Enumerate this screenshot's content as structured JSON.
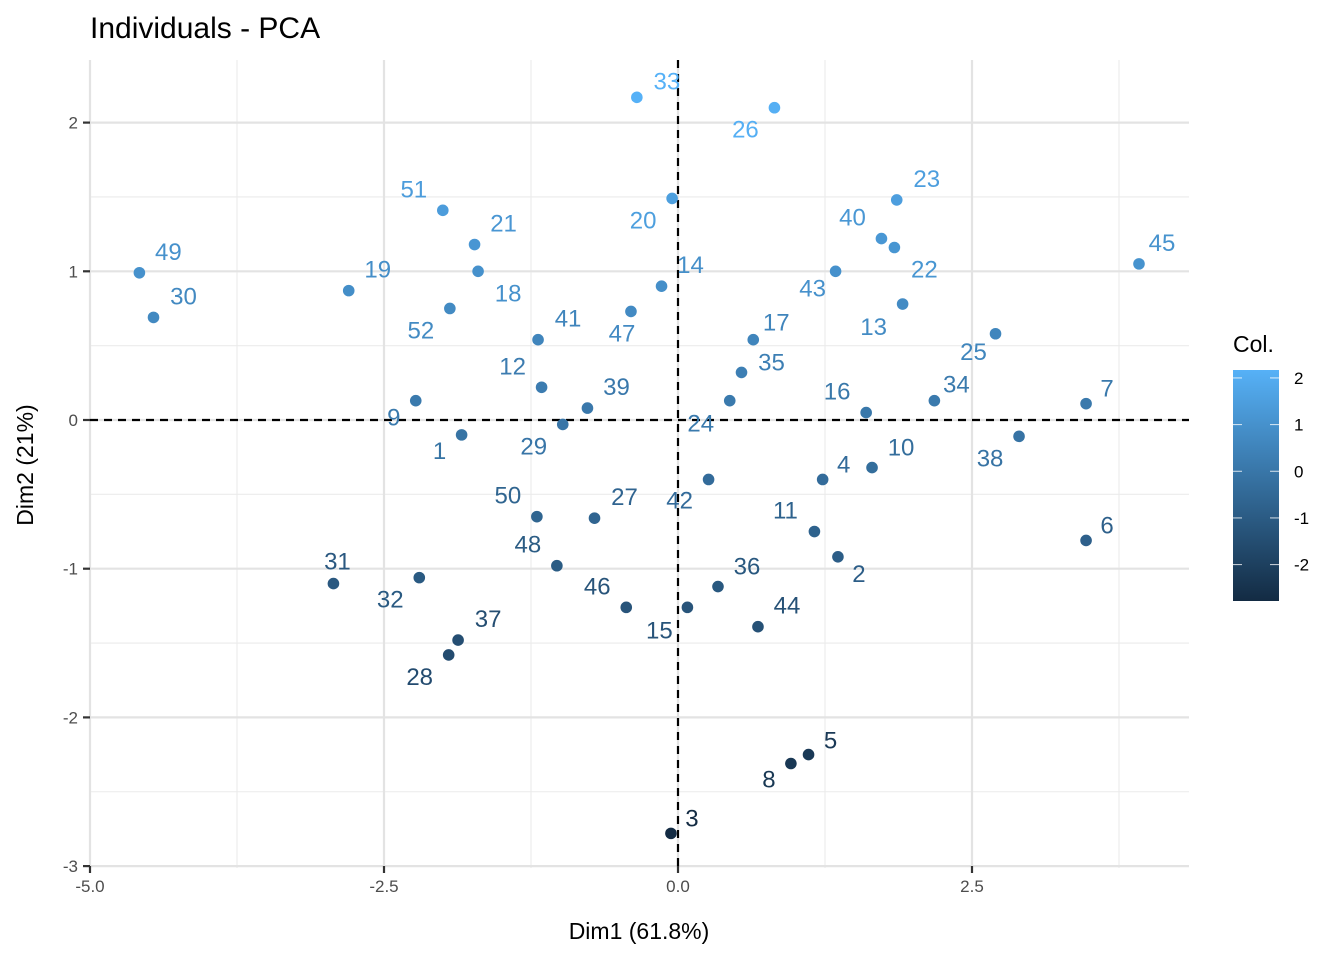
{
  "chart_data": {
    "type": "scatter",
    "title": "Individuals - PCA",
    "xlabel": "Dim1 (61.8%)",
    "ylabel": "Dim2 (21%)",
    "xlim": [
      -5.0,
      4.3
    ],
    "ylim": [
      -3.0,
      2.4
    ],
    "grid": true,
    "x_ticks": [
      -5.0,
      -2.5,
      0.0,
      2.5
    ],
    "x_tick_labels": [
      "-5.0",
      "-2.5",
      "0.0",
      "2.5"
    ],
    "y_ticks": [
      -3,
      -2,
      -1,
      0,
      1,
      2
    ],
    "y_tick_labels": [
      "-3",
      "-2",
      "-1",
      "0",
      "1",
      "2"
    ],
    "reference_lines": {
      "x": 0,
      "y": 0,
      "style": "dashed"
    },
    "color_variable": "Dim2",
    "legend": {
      "title": "Col.",
      "placement": "right",
      "type": "colorbar",
      "range": [
        -2.78,
        2.17
      ],
      "ticks": [
        2,
        1,
        0,
        -1,
        -2
      ],
      "tick_labels": [
        "2",
        "1",
        "0",
        "-1",
        "-2"
      ],
      "low_color": "#132B43",
      "high_color": "#56B1F7"
    },
    "points": [
      {
        "label": "1",
        "x": -1.84,
        "y": -0.1
      },
      {
        "label": "2",
        "x": 1.36,
        "y": -0.92
      },
      {
        "label": "3",
        "x": -0.06,
        "y": -2.78
      },
      {
        "label": "4",
        "x": 1.23,
        "y": -0.4
      },
      {
        "label": "5",
        "x": 1.11,
        "y": -2.25
      },
      {
        "label": "6",
        "x": 3.47,
        "y": -0.81
      },
      {
        "label": "7",
        "x": 3.47,
        "y": 0.11
      },
      {
        "label": "8",
        "x": 0.96,
        "y": -2.31
      },
      {
        "label": "9",
        "x": -2.23,
        "y": 0.13
      },
      {
        "label": "10",
        "x": 1.65,
        "y": -0.32
      },
      {
        "label": "11",
        "x": 1.16,
        "y": -0.75
      },
      {
        "label": "12",
        "x": -1.16,
        "y": 0.22
      },
      {
        "label": "13",
        "x": 1.91,
        "y": 0.78
      },
      {
        "label": "14",
        "x": -0.14,
        "y": 0.9
      },
      {
        "label": "15",
        "x": 0.08,
        "y": -1.26
      },
      {
        "label": "16",
        "x": 1.6,
        "y": 0.05
      },
      {
        "label": "17",
        "x": 0.64,
        "y": 0.54
      },
      {
        "label": "18",
        "x": -1.7,
        "y": 1.0
      },
      {
        "label": "19",
        "x": -2.8,
        "y": 0.87
      },
      {
        "label": "20",
        "x": -0.05,
        "y": 1.49
      },
      {
        "label": "21",
        "x": -1.73,
        "y": 1.18
      },
      {
        "label": "22",
        "x": 1.84,
        "y": 1.16
      },
      {
        "label": "23",
        "x": 1.86,
        "y": 1.48
      },
      {
        "label": "24",
        "x": 0.44,
        "y": 0.13
      },
      {
        "label": "25",
        "x": 2.7,
        "y": 0.58
      },
      {
        "label": "26",
        "x": 0.82,
        "y": 2.1
      },
      {
        "label": "27",
        "x": -0.71,
        "y": -0.66
      },
      {
        "label": "28",
        "x": -1.95,
        "y": -1.58
      },
      {
        "label": "29",
        "x": -0.98,
        "y": -0.03
      },
      {
        "label": "30",
        "x": -4.46,
        "y": 0.69
      },
      {
        "label": "31",
        "x": -2.93,
        "y": -1.1
      },
      {
        "label": "32",
        "x": -2.2,
        "y": -1.06
      },
      {
        "label": "33",
        "x": -0.35,
        "y": 2.17
      },
      {
        "label": "34",
        "x": 2.18,
        "y": 0.13
      },
      {
        "label": "35",
        "x": 0.54,
        "y": 0.32
      },
      {
        "label": "36",
        "x": 0.34,
        "y": -1.12
      },
      {
        "label": "37",
        "x": -1.87,
        "y": -1.48
      },
      {
        "label": "38",
        "x": 2.9,
        "y": -0.11
      },
      {
        "label": "39",
        "x": -0.77,
        "y": 0.08
      },
      {
        "label": "40",
        "x": 1.73,
        "y": 1.22
      },
      {
        "label": "41",
        "x": -1.19,
        "y": 0.54
      },
      {
        "label": "42",
        "x": 0.26,
        "y": -0.4
      },
      {
        "label": "43",
        "x": 1.34,
        "y": 1.0
      },
      {
        "label": "44",
        "x": 0.68,
        "y": -1.39
      },
      {
        "label": "45",
        "x": 3.92,
        "y": 1.05
      },
      {
        "label": "46",
        "x": -0.44,
        "y": -1.26
      },
      {
        "label": "47",
        "x": -0.4,
        "y": 0.73
      },
      {
        "label": "48",
        "x": -1.03,
        "y": -0.98
      },
      {
        "label": "49",
        "x": -4.58,
        "y": 0.99
      },
      {
        "label": "50",
        "x": -1.2,
        "y": -0.65
      },
      {
        "label": "51",
        "x": -2.0,
        "y": 1.41
      },
      {
        "label": "52",
        "x": -1.94,
        "y": 0.75
      }
    ]
  }
}
